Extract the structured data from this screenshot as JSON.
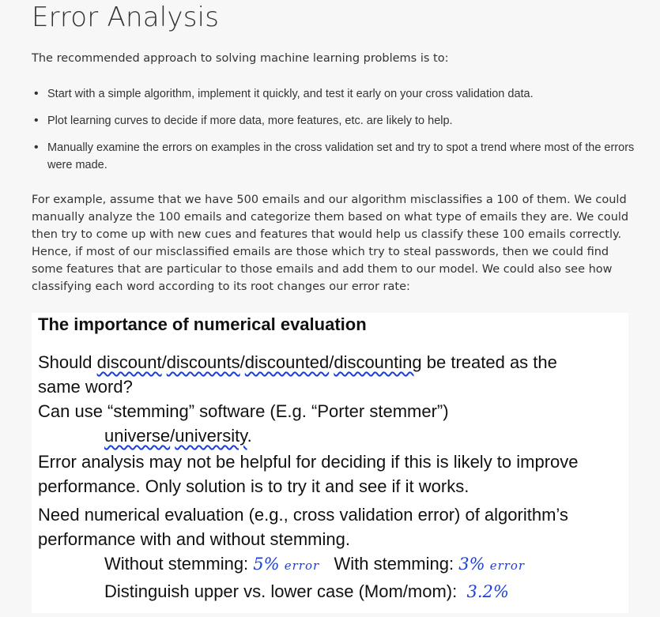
{
  "title": "Error Analysis",
  "intro": "The recommended approach to solving machine learning problems is to:",
  "steps": [
    "Start with a simple algorithm, implement it quickly, and test it early on your cross validation data.",
    "Plot learning curves to decide if more data, more features, etc. are likely to help.",
    "Manually examine the errors on examples in the cross validation set and try to spot a trend where most of the errors were made."
  ],
  "bullet_char": "•",
  "example_paragraph": "For example, assume that we have 500 emails and our algorithm misclassifies a 100 of them. We could manually analyze the 100 emails and categorize them based on what type of emails they are. We could then try to come up with new cues and features that would help us classify these 100 emails correctly. Hence, if most of our misclassified emails are those which try to steal passwords, then we could find some features that are particular to those emails and add them to our model. We could also see how classifying each word according to its root changes our error rate:",
  "slide": {
    "title": "The importance of numerical evaluation",
    "q_prefix": "Should ",
    "w1": "discount",
    "sep1": "/",
    "w2": "discounts",
    "sep2": "/",
    "w3": "discounted",
    "sep3": "/",
    "w4": "discounting",
    "q_suffix": " be treated as the",
    "q_line2": "same word?",
    "stem_line": "Can use “stemming” software (E.g. “Porter stemmer”)",
    "uni1": "universe",
    "uni_sep": "/",
    "uni2": "university",
    "uni_end": ".",
    "err_line1": "Error analysis may not be helpful for deciding if this is likely to improve",
    "err_line2": "performance. Only solution is to try it and see if it works.",
    "need_line1": "Need numerical evaluation (e.g., cross validation error) of algorithm’s",
    "need_line2": "performance with and without stemming.",
    "without_label": "Without stemming:",
    "without_value": "5%",
    "without_word": "error",
    "with_label": "With stemming:",
    "with_value": "3%",
    "with_word": "error",
    "case_label": "Distinguish upper vs. lower case (Mom/mom):",
    "case_value": "3.2%"
  },
  "colors": {
    "background": "#f7f7f7",
    "text": "#333333",
    "slide_bg": "#ffffff",
    "handwriting": "#1a3fd9"
  }
}
